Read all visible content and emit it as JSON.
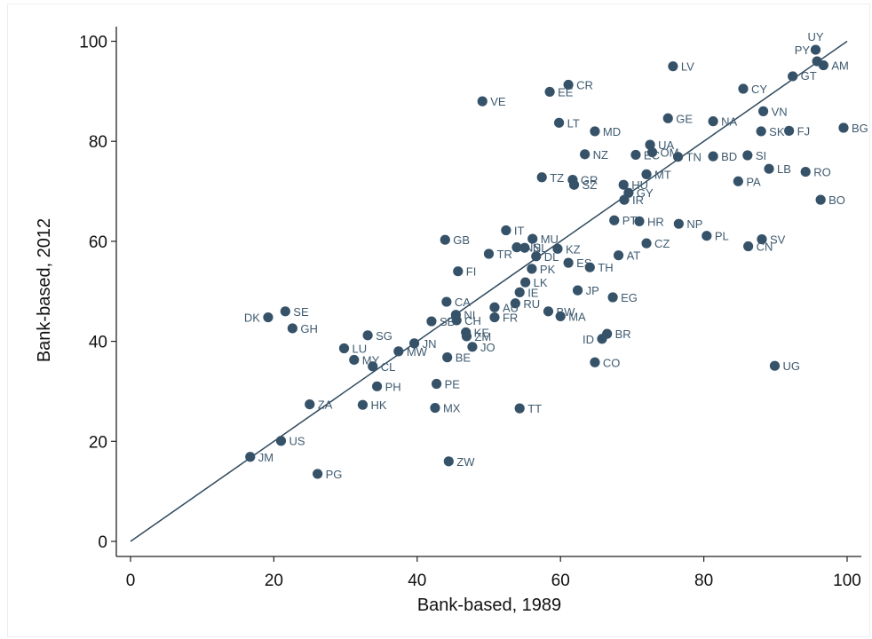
{
  "colors": {
    "marker": "#365269",
    "line": "#2f4a5e",
    "axis": "#222222",
    "label": "#3e5a6f"
  },
  "chart_data": {
    "type": "scatter",
    "title": "",
    "xlabel": "Bank-based, 1989",
    "ylabel": "Bank-based, 2012",
    "xlim": [
      0,
      100
    ],
    "ylim": [
      0,
      100
    ],
    "xticks": [
      "0",
      "20",
      "40",
      "60",
      "80",
      "100"
    ],
    "yticks": [
      "0",
      "20",
      "40",
      "60",
      "80",
      "100"
    ],
    "grid": false,
    "legend": "none",
    "reference_line": {
      "from": [
        0,
        0
      ],
      "to": [
        100,
        100
      ]
    },
    "points": [
      {
        "label": "UY",
        "x": 95.6,
        "y": 98.3
      },
      {
        "label": "PY",
        "x": 95.8,
        "y": 96.0
      },
      {
        "label": "AM",
        "x": 96.7,
        "y": 95.2
      },
      {
        "label": "GT",
        "x": 92.4,
        "y": 93.0
      },
      {
        "label": "LV",
        "x": 75.7,
        "y": 95.0
      },
      {
        "label": "CR",
        "x": 61.1,
        "y": 91.3
      },
      {
        "label": "EE",
        "x": 58.5,
        "y": 89.9
      },
      {
        "label": "CY",
        "x": 85.5,
        "y": 90.5
      },
      {
        "label": "VE",
        "x": 49.1,
        "y": 88.0
      },
      {
        "label": "VN",
        "x": 88.3,
        "y": 86.0
      },
      {
        "label": "GE",
        "x": 75.0,
        "y": 84.6
      },
      {
        "label": "NA",
        "x": 81.3,
        "y": 84.0
      },
      {
        "label": "LT",
        "x": 59.8,
        "y": 83.7
      },
      {
        "label": "BG",
        "x": 99.5,
        "y": 82.7
      },
      {
        "label": "SK",
        "x": 88.0,
        "y": 82.0
      },
      {
        "label": "FJ",
        "x": 91.9,
        "y": 82.1
      },
      {
        "label": "MD",
        "x": 64.8,
        "y": 82.0
      },
      {
        "label": "UA",
        "x": 72.5,
        "y": 79.3
      },
      {
        "label": "NZ",
        "x": 63.4,
        "y": 77.4
      },
      {
        "label": "EC",
        "x": 70.5,
        "y": 77.3
      },
      {
        "label": "OM",
        "x": 72.8,
        "y": 77.8
      },
      {
        "label": "TN",
        "x": 76.4,
        "y": 76.9
      },
      {
        "label": "BD",
        "x": 81.3,
        "y": 77.0
      },
      {
        "label": "SI",
        "x": 86.1,
        "y": 77.2
      },
      {
        "label": "LB",
        "x": 89.1,
        "y": 74.5
      },
      {
        "label": "RO",
        "x": 94.2,
        "y": 73.9
      },
      {
        "label": "MT",
        "x": 72.0,
        "y": 73.4
      },
      {
        "label": "TZ",
        "x": 57.4,
        "y": 72.8
      },
      {
        "label": "GR",
        "x": 61.7,
        "y": 72.3
      },
      {
        "label": "SZ",
        "x": 61.9,
        "y": 71.3
      },
      {
        "label": "PA",
        "x": 84.8,
        "y": 72.0
      },
      {
        "label": "HU",
        "x": 68.8,
        "y": 71.3
      },
      {
        "label": "GY",
        "x": 69.5,
        "y": 69.7
      },
      {
        "label": "IR",
        "x": 68.9,
        "y": 68.3
      },
      {
        "label": "BO",
        "x": 96.3,
        "y": 68.3
      },
      {
        "label": "PT",
        "x": 67.5,
        "y": 64.2
      },
      {
        "label": "HR",
        "x": 71.0,
        "y": 64.0
      },
      {
        "label": "NP",
        "x": 76.5,
        "y": 63.5
      },
      {
        "label": "IT",
        "x": 52.4,
        "y": 62.2
      },
      {
        "label": "PL",
        "x": 80.4,
        "y": 61.1
      },
      {
        "label": "SV",
        "x": 88.1,
        "y": 60.4
      },
      {
        "label": "GB",
        "x": 43.9,
        "y": 60.3
      },
      {
        "label": "MU",
        "x": 56.1,
        "y": 60.5
      },
      {
        "label": "CZ",
        "x": 72.0,
        "y": 59.6
      },
      {
        "label": "NS",
        "x": 53.9,
        "y": 58.8
      },
      {
        "label": "CN",
        "x": 86.2,
        "y": 59.0
      },
      {
        "label": "KZ",
        "x": 59.6,
        "y": 58.5
      },
      {
        "label": "TR",
        "x": 50.0,
        "y": 57.5
      },
      {
        "label": "NL",
        "x": 55.0,
        "y": 58.7
      },
      {
        "label": "DL",
        "x": 56.6,
        "y": 57.0
      },
      {
        "label": "AT",
        "x": 68.1,
        "y": 57.2
      },
      {
        "label": "ES",
        "x": 61.1,
        "y": 55.7
      },
      {
        "label": "TH",
        "x": 64.1,
        "y": 54.8
      },
      {
        "label": "FI",
        "x": 45.7,
        "y": 54.0
      },
      {
        "label": "PK",
        "x": 56.0,
        "y": 54.5
      },
      {
        "label": "LK",
        "x": 55.1,
        "y": 51.8
      },
      {
        "label": "JP",
        "x": 62.4,
        "y": 50.2
      },
      {
        "label": "IE",
        "x": 54.3,
        "y": 49.8
      },
      {
        "label": "EG",
        "x": 67.3,
        "y": 48.8
      },
      {
        "label": "CA",
        "x": 44.1,
        "y": 47.9
      },
      {
        "label": "RU",
        "x": 53.7,
        "y": 47.6
      },
      {
        "label": "AU",
        "x": 50.8,
        "y": 46.8
      },
      {
        "label": "BW",
        "x": 58.3,
        "y": 46.0
      },
      {
        "label": "NI",
        "x": 45.4,
        "y": 45.3
      },
      {
        "label": "SE",
        "x": 21.6,
        "y": 46.0
      },
      {
        "label": "DK",
        "x": 19.2,
        "y": 44.8
      },
      {
        "label": "MA",
        "x": 60.0,
        "y": 45.0
      },
      {
        "label": "FR",
        "x": 50.8,
        "y": 44.8
      },
      {
        "label": "CH",
        "x": 45.5,
        "y": 44.2
      },
      {
        "label": "SB",
        "x": 42.0,
        "y": 44.0
      },
      {
        "label": "GH",
        "x": 22.6,
        "y": 42.6
      },
      {
        "label": "KE",
        "x": 46.8,
        "y": 41.8
      },
      {
        "label": "SG",
        "x": 33.1,
        "y": 41.2
      },
      {
        "label": "ZM",
        "x": 46.9,
        "y": 41.0
      },
      {
        "label": "BR",
        "x": 66.5,
        "y": 41.5
      },
      {
        "label": "ID",
        "x": 65.8,
        "y": 40.5
      },
      {
        "label": "JN",
        "x": 39.6,
        "y": 39.6
      },
      {
        "label": "JO",
        "x": 47.7,
        "y": 38.9
      },
      {
        "label": "LU",
        "x": 29.8,
        "y": 38.6
      },
      {
        "label": "MW",
        "x": 37.4,
        "y": 38.0
      },
      {
        "label": "BE",
        "x": 44.2,
        "y": 36.8
      },
      {
        "label": "MY",
        "x": 31.2,
        "y": 36.3
      },
      {
        "label": "CL",
        "x": 33.8,
        "y": 35.0
      },
      {
        "label": "CO",
        "x": 64.8,
        "y": 35.8
      },
      {
        "label": "UG",
        "x": 89.9,
        "y": 35.1
      },
      {
        "label": "PH",
        "x": 34.4,
        "y": 31.0
      },
      {
        "label": "PE",
        "x": 42.7,
        "y": 31.5
      },
      {
        "label": "ZA",
        "x": 25.0,
        "y": 27.4
      },
      {
        "label": "HK",
        "x": 32.4,
        "y": 27.3
      },
      {
        "label": "MX",
        "x": 42.5,
        "y": 26.7
      },
      {
        "label": "TT",
        "x": 54.3,
        "y": 26.6
      },
      {
        "label": "US",
        "x": 21.0,
        "y": 20.1
      },
      {
        "label": "JM",
        "x": 16.7,
        "y": 16.9
      },
      {
        "label": "ZW",
        "x": 44.4,
        "y": 16.0
      },
      {
        "label": "PG",
        "x": 26.1,
        "y": 13.5
      }
    ]
  }
}
